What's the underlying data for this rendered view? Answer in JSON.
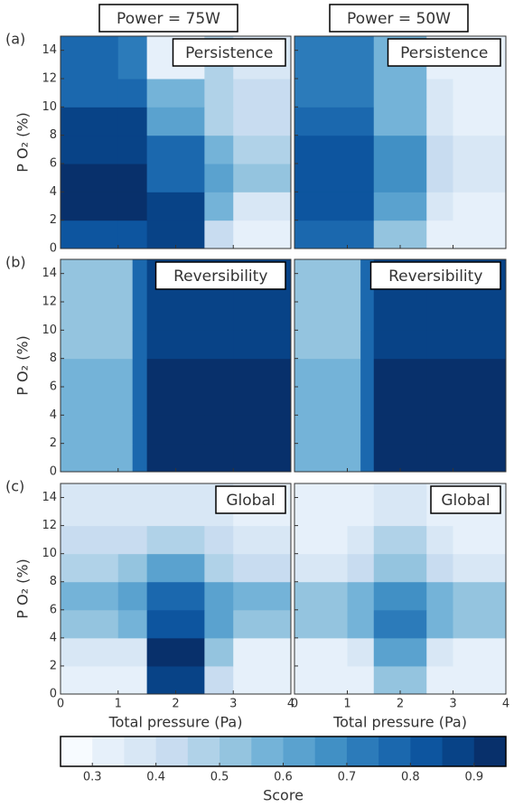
{
  "column_titles": [
    "Power = 75W",
    "Power = 50W"
  ],
  "row_labels": [
    "(a)",
    "(b)",
    "(c)"
  ],
  "chart_data": [
    {
      "type": "heatmap",
      "title": "Persistence",
      "ylabel": "P O₂ (%)",
      "xlim": [
        0,
        4
      ],
      "ylim": [
        0,
        15
      ],
      "xticks": [
        0,
        1,
        2,
        3,
        4
      ],
      "yticks": [
        0,
        2,
        4,
        6,
        8,
        10,
        12,
        14
      ],
      "x_edges": [
        0,
        1,
        1.5,
        2.5,
        3,
        4
      ],
      "y_edges": [
        0,
        2,
        4,
        6,
        8,
        10,
        12,
        15
      ],
      "values": [
        [
          0.8,
          0.8,
          0.85,
          0.4,
          0.3
        ],
        [
          0.95,
          0.95,
          0.85,
          0.55,
          0.35
        ],
        [
          0.95,
          0.95,
          0.75,
          0.6,
          0.5
        ],
        [
          0.85,
          0.85,
          0.75,
          0.55,
          0.45
        ],
        [
          0.85,
          0.85,
          0.6,
          0.45,
          0.4
        ],
        [
          0.75,
          0.75,
          0.55,
          0.45,
          0.4
        ],
        [
          0.75,
          0.7,
          0.3,
          0.45,
          0.35
        ]
      ]
    },
    {
      "type": "heatmap",
      "title": "Persistence",
      "xlim": [
        0,
        4
      ],
      "ylim": [
        0,
        15
      ],
      "xticks": [
        0,
        1,
        2,
        3,
        4
      ],
      "yticks": [
        0,
        2,
        4,
        6,
        8,
        10,
        12,
        14
      ],
      "x_edges": [
        0,
        1,
        1.5,
        2.5,
        3,
        4
      ],
      "y_edges": [
        0,
        2,
        4,
        6,
        8,
        10,
        12,
        15
      ],
      "values": [
        [
          0.75,
          0.75,
          0.5,
          0.3,
          0.3
        ],
        [
          0.8,
          0.8,
          0.6,
          0.35,
          0.3
        ],
        [
          0.8,
          0.8,
          0.65,
          0.4,
          0.35
        ],
        [
          0.8,
          0.8,
          0.65,
          0.4,
          0.35
        ],
        [
          0.75,
          0.75,
          0.55,
          0.35,
          0.3
        ],
        [
          0.7,
          0.7,
          0.55,
          0.35,
          0.3
        ],
        [
          0.7,
          0.7,
          0.55,
          0.3,
          0.3
        ]
      ]
    },
    {
      "type": "heatmap",
      "title": "Reversibility",
      "ylabel": "P O₂ (%)",
      "xlim": [
        0,
        4
      ],
      "ylim": [
        0,
        15
      ],
      "xticks": [
        0,
        1,
        2,
        3,
        4
      ],
      "yticks": [
        0,
        2,
        4,
        6,
        8,
        10,
        12,
        14
      ],
      "x_edges": [
        0,
        1.25,
        1.5,
        2.5,
        3,
        4
      ],
      "y_edges": [
        0,
        2,
        4,
        6,
        8,
        10,
        12,
        15
      ],
      "values": [
        [
          0.55,
          0.75,
          0.95,
          0.95,
          0.95
        ],
        [
          0.55,
          0.75,
          0.95,
          0.95,
          0.95
        ],
        [
          0.55,
          0.75,
          0.95,
          0.95,
          0.95
        ],
        [
          0.55,
          0.75,
          0.95,
          0.95,
          0.95
        ],
        [
          0.5,
          0.75,
          0.85,
          0.85,
          0.85
        ],
        [
          0.5,
          0.75,
          0.85,
          0.85,
          0.85
        ],
        [
          0.5,
          0.75,
          0.85,
          0.85,
          0.85
        ]
      ]
    },
    {
      "type": "heatmap",
      "title": "Reversibility",
      "xlim": [
        0,
        4
      ],
      "ylim": [
        0,
        15
      ],
      "xticks": [
        0,
        1,
        2,
        3,
        4
      ],
      "yticks": [
        0,
        2,
        4,
        6,
        8,
        10,
        12,
        14
      ],
      "x_edges": [
        0,
        1.25,
        1.5,
        2.5,
        3,
        4
      ],
      "y_edges": [
        0,
        2,
        4,
        6,
        8,
        10,
        12,
        15
      ],
      "values": [
        [
          0.55,
          0.75,
          0.95,
          0.95,
          0.95
        ],
        [
          0.55,
          0.75,
          0.95,
          0.95,
          0.95
        ],
        [
          0.55,
          0.75,
          0.95,
          0.95,
          0.95
        ],
        [
          0.55,
          0.75,
          0.95,
          0.95,
          0.95
        ],
        [
          0.5,
          0.75,
          0.85,
          0.85,
          0.85
        ],
        [
          0.5,
          0.75,
          0.85,
          0.85,
          0.85
        ],
        [
          0.5,
          0.75,
          0.85,
          0.85,
          0.85
        ]
      ]
    },
    {
      "type": "heatmap",
      "title": "Global",
      "ylabel": "P O₂ (%)",
      "xlabel": "Total pressure (Pa)",
      "xlim": [
        0,
        4
      ],
      "ylim": [
        0,
        15
      ],
      "xticks": [
        0,
        1,
        2,
        3,
        4
      ],
      "yticks": [
        0,
        2,
        4,
        6,
        8,
        10,
        12,
        14
      ],
      "x_edges": [
        0,
        1,
        1.5,
        2.5,
        3,
        4
      ],
      "y_edges": [
        0,
        2,
        4,
        6,
        8,
        10,
        12,
        15
      ],
      "values": [
        [
          0.3,
          0.3,
          0.85,
          0.4,
          0.3
        ],
        [
          0.35,
          0.35,
          0.9,
          0.5,
          0.3
        ],
        [
          0.5,
          0.55,
          0.8,
          0.6,
          0.5
        ],
        [
          0.55,
          0.6,
          0.75,
          0.6,
          0.55
        ],
        [
          0.45,
          0.5,
          0.6,
          0.45,
          0.4
        ],
        [
          0.4,
          0.4,
          0.45,
          0.4,
          0.35
        ],
        [
          0.35,
          0.35,
          0.35,
          0.35,
          0.3
        ]
      ]
    },
    {
      "type": "heatmap",
      "title": "Global",
      "xlabel": "Total pressure (Pa)",
      "xlim": [
        0,
        4
      ],
      "ylim": [
        0,
        15
      ],
      "xticks": [
        0,
        1,
        2,
        3,
        4
      ],
      "yticks": [
        0,
        2,
        4,
        6,
        8,
        10,
        12,
        14
      ],
      "x_edges": [
        0,
        1,
        1.5,
        2.5,
        3,
        4
      ],
      "y_edges": [
        0,
        2,
        4,
        6,
        8,
        10,
        12,
        15
      ],
      "values": [
        [
          0.3,
          0.3,
          0.5,
          0.3,
          0.3
        ],
        [
          0.3,
          0.35,
          0.6,
          0.35,
          0.3
        ],
        [
          0.5,
          0.55,
          0.7,
          0.55,
          0.5
        ],
        [
          0.5,
          0.55,
          0.65,
          0.55,
          0.5
        ],
        [
          0.35,
          0.4,
          0.5,
          0.4,
          0.35
        ],
        [
          0.3,
          0.35,
          0.45,
          0.35,
          0.3
        ],
        [
          0.3,
          0.3,
          0.35,
          0.3,
          0.3
        ]
      ]
    }
  ],
  "colorbar": {
    "label": "Score",
    "levels": [
      0.25,
      0.3,
      0.35,
      0.4,
      0.45,
      0.5,
      0.55,
      0.6,
      0.65,
      0.7,
      0.75,
      0.8,
      0.85,
      0.9,
      0.95
    ],
    "colormap": [
      "#f7fbff",
      "#e6f0fa",
      "#d8e7f5",
      "#c8dcf0",
      "#b0d2e8",
      "#94c4df",
      "#74b3d8",
      "#5aa2cf",
      "#4190c5",
      "#2c7bba",
      "#1b68ae",
      "#0d559f",
      "#084387",
      "#08306b"
    ],
    "ticks": [
      0.3,
      0.4,
      0.5,
      0.6,
      0.7,
      0.8,
      0.9
    ]
  }
}
